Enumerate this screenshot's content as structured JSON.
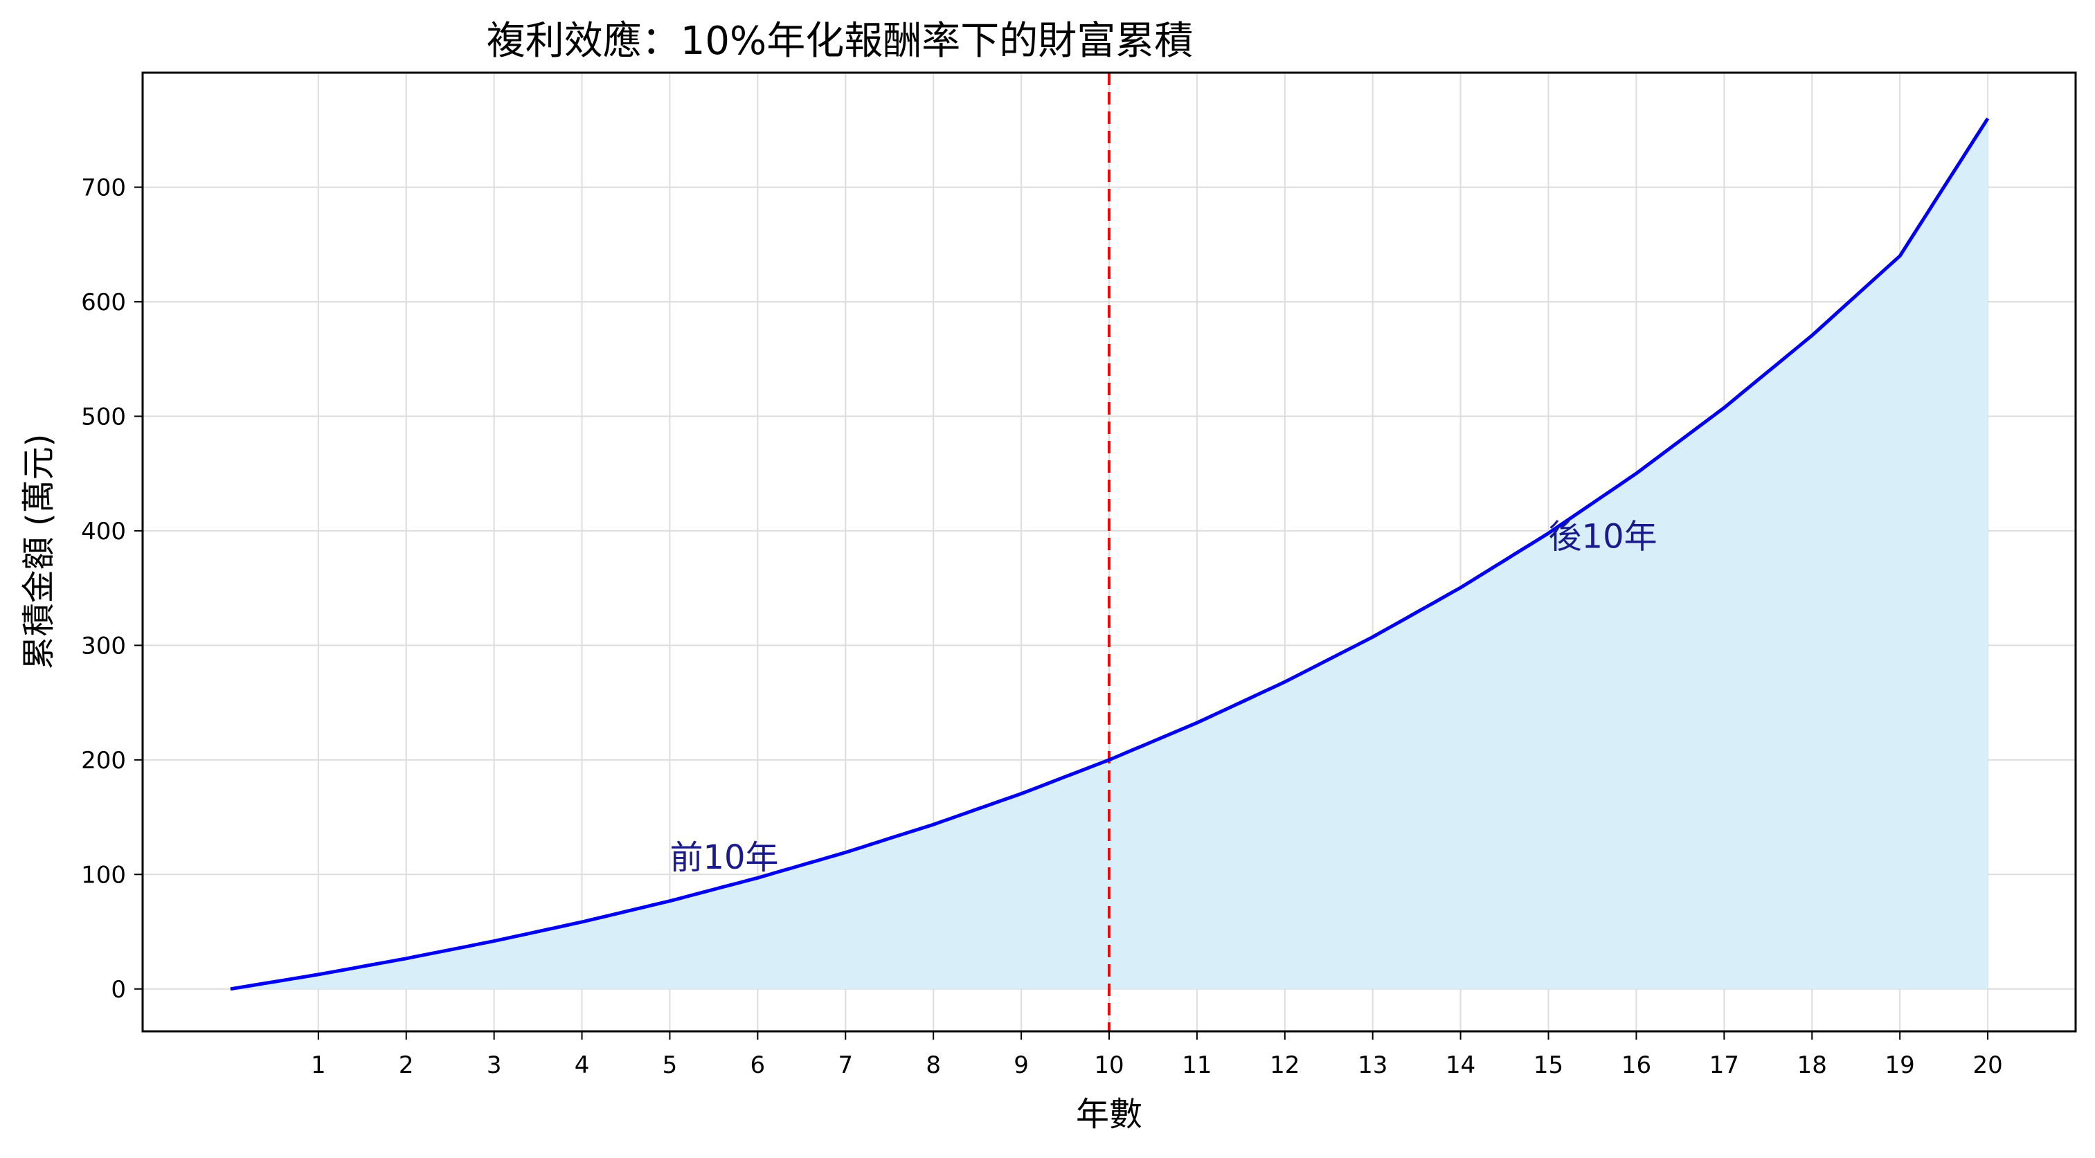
{
  "chart_data": {
    "type": "area",
    "title": "複利效應：10%年化報酬率下的財富累積",
    "xlabel": "年數",
    "ylabel": "累積金額 (萬元)",
    "x": [
      0,
      1,
      2,
      3,
      4,
      5,
      6,
      7,
      8,
      9,
      10,
      11,
      12,
      13,
      14,
      15,
      16,
      17,
      18,
      19,
      20
    ],
    "series": [
      {
        "values": [
          0,
          12.6,
          26.6,
          41.8,
          58.5,
          76.8,
          97.0,
          119.2,
          143.6,
          170.5,
          200.0,
          232.4,
          268.1,
          307.3,
          350.4,
          397.9,
          450.1,
          507.5,
          570.6,
          640.0,
          760.0
        ]
      }
    ],
    "xlim": [
      -1,
      21
    ],
    "ylim": [
      -37,
      800
    ],
    "xticks": [
      "1",
      "2",
      "3",
      "4",
      "5",
      "6",
      "7",
      "8",
      "9",
      "10",
      "11",
      "12",
      "13",
      "14",
      "15",
      "16",
      "17",
      "18",
      "19",
      "20"
    ],
    "yticks": [
      "0",
      "100",
      "200",
      "300",
      "400",
      "500",
      "600",
      "700"
    ],
    "ytick_values": [
      0,
      100,
      200,
      300,
      400,
      500,
      600,
      700
    ],
    "grid": true,
    "vline": {
      "x": 10,
      "style": "dashed"
    },
    "annotations": [
      {
        "text": "前10年",
        "x": 5,
        "y": 105
      },
      {
        "text": "後10年",
        "x": 15,
        "y": 385
      }
    ],
    "colors": {
      "line": "#0000ee",
      "fill": "#d8eef8",
      "vline": "#ff0000",
      "annotation": "#1a1a8c",
      "grid": "#dddddd"
    }
  }
}
